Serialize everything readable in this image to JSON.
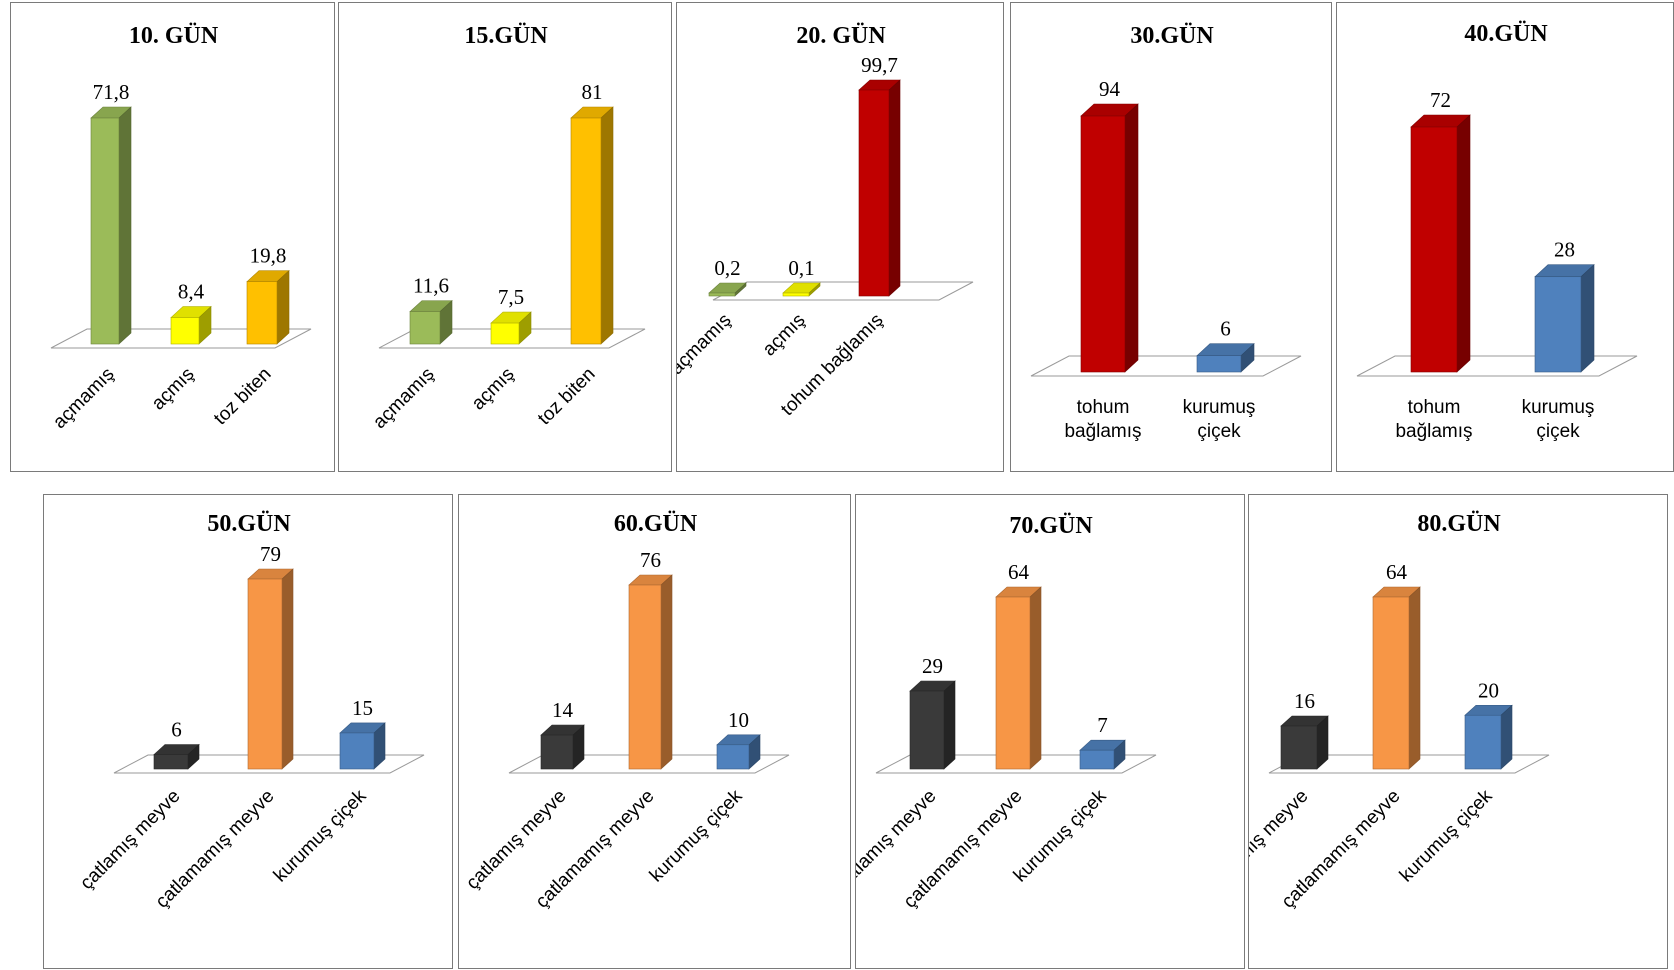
{
  "colors": {
    "green": "#9BBB59",
    "yellow": "#FFFF00",
    "amber": "#FFC000",
    "red": "#C00000",
    "blue": "#4F81BD",
    "black": "#3A3A3A",
    "orange": "#F79646",
    "floor_border": "#9a9a9a"
  },
  "chart_data": [
    {
      "type": "bar",
      "title": "10. GÜN",
      "categories": [
        "açmamış",
        "açmış",
        "toz biten"
      ],
      "values": [
        71.8,
        8.4,
        19.8
      ],
      "value_labels": [
        "71,8",
        "8,4",
        "19,8"
      ],
      "colors": [
        "green",
        "yellow",
        "amber"
      ],
      "ylim": [
        0,
        71.8
      ],
      "grid": false,
      "three_d": true
    },
    {
      "type": "bar",
      "title": "15.GÜN",
      "categories": [
        "açmamış",
        "açmış",
        "toz biten"
      ],
      "values": [
        11.6,
        7.5,
        81
      ],
      "value_labels": [
        "11,6",
        "7,5",
        "81"
      ],
      "colors": [
        "green",
        "yellow",
        "amber"
      ],
      "ylim": [
        0,
        81
      ],
      "grid": false,
      "three_d": true
    },
    {
      "type": "bar",
      "title": "20. GÜN",
      "categories": [
        "açmamış",
        "açmış",
        "tohum bağlamış"
      ],
      "values": [
        0.2,
        0.1,
        99.7
      ],
      "value_labels": [
        "0,2",
        "0,1",
        "99,7"
      ],
      "colors": [
        "green",
        "yellow",
        "red"
      ],
      "ylim": [
        0,
        99.7
      ],
      "grid": false,
      "three_d": true
    },
    {
      "type": "bar",
      "title": "30.GÜN",
      "categories": [
        [
          "tohum",
          "bağlamış"
        ],
        [
          "kurumuş",
          "çiçek"
        ]
      ],
      "values": [
        94,
        6
      ],
      "value_labels": [
        "94",
        "6"
      ],
      "colors": [
        "red",
        "blue"
      ],
      "ylim": [
        0,
        94
      ],
      "grid": false,
      "three_d": true
    },
    {
      "type": "bar",
      "title": "40.GÜN",
      "categories": [
        [
          "tohum",
          "bağlamış"
        ],
        [
          "kurumuş",
          "çiçek"
        ]
      ],
      "values": [
        72,
        28
      ],
      "value_labels": [
        "72",
        "28"
      ],
      "colors": [
        "red",
        "blue"
      ],
      "ylim": [
        0,
        72
      ],
      "grid": false,
      "three_d": true
    },
    {
      "type": "bar",
      "title": "50.GÜN",
      "categories": [
        "çatlamış meyve",
        "çatlamamış meyve",
        "kurumuş çiçek"
      ],
      "values": [
        6,
        79,
        15
      ],
      "value_labels": [
        "6",
        "79",
        "15"
      ],
      "colors": [
        "black",
        "orange",
        "blue"
      ],
      "ylim": [
        0,
        79
      ],
      "grid": false,
      "three_d": true
    },
    {
      "type": "bar",
      "title": "60.GÜN",
      "categories": [
        "çatlamış meyve",
        "çatlamamış meyve",
        "kurumuş çiçek"
      ],
      "values": [
        14,
        76,
        10
      ],
      "value_labels": [
        "14",
        "76",
        "10"
      ],
      "colors": [
        "black",
        "orange",
        "blue"
      ],
      "ylim": [
        0,
        76
      ],
      "grid": false,
      "three_d": true
    },
    {
      "type": "bar",
      "title": "70.GÜN",
      "categories": [
        "çatlamış meyve",
        "çatlamamış meyve",
        "kurumuş çiçek"
      ],
      "values": [
        29,
        64,
        7
      ],
      "value_labels": [
        "29",
        "64",
        "7"
      ],
      "colors": [
        "black",
        "orange",
        "blue"
      ],
      "ylim": [
        0,
        64
      ],
      "grid": false,
      "three_d": true
    },
    {
      "type": "bar",
      "title": "80.GÜN",
      "categories": [
        "çatlamış meyve",
        "çatlamamış meyve",
        "kurumuş çiçek"
      ],
      "values": [
        16,
        64,
        20
      ],
      "value_labels": [
        "16",
        "64",
        "20"
      ],
      "colors": [
        "black",
        "orange",
        "blue"
      ],
      "ylim": [
        0,
        64
      ],
      "grid": false,
      "three_d": true
    }
  ]
}
